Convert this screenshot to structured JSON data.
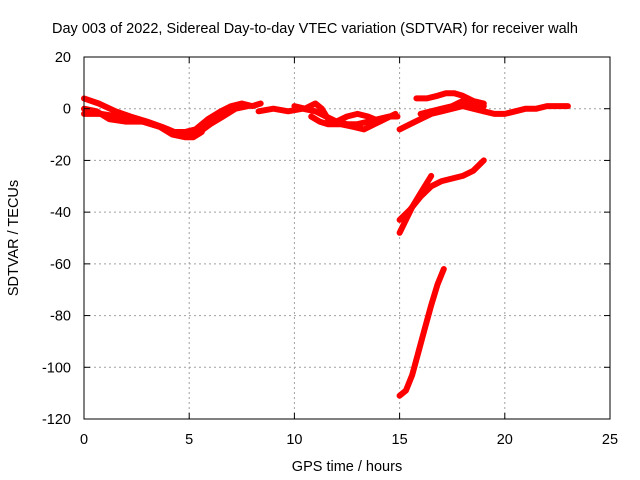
{
  "chart_data": {
    "type": "scatter",
    "title": "Day 003 of 2022, Sidereal Day-to-day VTEC variation (SDTVAR) for receiver walh",
    "xlabel": "GPS time / hours",
    "ylabel": "SDTVAR / TECUs",
    "xlim": [
      0,
      25
    ],
    "ylim": [
      -120,
      20
    ],
    "xticks": [
      0,
      5,
      10,
      15,
      20,
      25
    ],
    "yticks": [
      -120,
      -100,
      -80,
      -60,
      -40,
      -20,
      0,
      20
    ],
    "xtick_labels": [
      "0",
      "5",
      "10",
      "15",
      "20",
      "25"
    ],
    "ytick_labels": [
      "-120",
      "-100",
      "-80",
      "-60",
      "-40",
      "-20",
      "0",
      "20"
    ],
    "grid": true,
    "marker_color": "#ff0000",
    "series": [
      {
        "name": "track-1",
        "x": [
          0.0,
          0.7,
          1.5,
          2.2,
          3.0,
          3.7,
          4.3,
          4.8,
          5.3,
          5.9,
          6.5,
          7.0,
          7.5,
          8.0,
          8.4
        ],
        "y": [
          4,
          2,
          -1,
          -3,
          -5,
          -7,
          -9,
          -9,
          -8,
          -4,
          -1,
          1,
          2,
          1,
          2
        ]
      },
      {
        "name": "track-2",
        "x": [
          0.0,
          0.8,
          1.6,
          2.4,
          3.2,
          4.0,
          4.5,
          5.0,
          5.5,
          6.0,
          6.6,
          7.2,
          7.8
        ],
        "y": [
          -2,
          -2,
          -3,
          -4,
          -6,
          -8,
          -10,
          -10,
          -9,
          -6,
          -3,
          0,
          1
        ]
      },
      {
        "name": "track-3",
        "x": [
          0.0,
          0.6,
          1.2,
          2.0,
          2.8,
          3.6,
          4.2,
          4.8,
          5.2,
          5.6
        ],
        "y": [
          0,
          -1,
          -4,
          -5,
          -5,
          -7,
          -10,
          -11,
          -11,
          -9
        ]
      },
      {
        "name": "track-4",
        "x": [
          8.3,
          9.0,
          9.7,
          10.4,
          11.0,
          11.5,
          12.0,
          12.5,
          13.0,
          13.5,
          14.0,
          14.5,
          14.9
        ],
        "y": [
          -1,
          0,
          -1,
          0,
          -1,
          -3,
          -5,
          -6,
          -6,
          -5,
          -4,
          -3,
          -3
        ]
      },
      {
        "name": "track-5",
        "x": [
          10.0,
          10.5,
          11.0,
          11.3,
          11.6,
          12.0,
          12.5,
          13.0,
          13.5,
          13.8
        ],
        "y": [
          1,
          0,
          2,
          0,
          -4,
          -5,
          -3,
          -2,
          -3,
          -4
        ]
      },
      {
        "name": "track-6",
        "x": [
          10.8,
          11.2,
          11.6,
          12.2,
          12.8,
          13.3,
          13.8,
          14.3,
          14.8
        ],
        "y": [
          -3,
          -5,
          -6,
          -6,
          -7,
          -8,
          -6,
          -4,
          -2
        ]
      },
      {
        "name": "track-7",
        "x": [
          15.0,
          15.5,
          16.0,
          16.5,
          17.0,
          17.5,
          18.0,
          18.5,
          19.0,
          19.5,
          20.0,
          20.5,
          21.0,
          21.5,
          22.0,
          22.5,
          23.0
        ],
        "y": [
          -8,
          -6,
          -4,
          -2,
          -1,
          0,
          1,
          0,
          -1,
          -2,
          -2,
          -1,
          0,
          0,
          1,
          1,
          1
        ]
      },
      {
        "name": "track-8",
        "x": [
          15.8,
          16.3,
          16.8,
          17.2,
          17.6,
          18.0,
          18.5,
          19.0
        ],
        "y": [
          4,
          4,
          5,
          6,
          6,
          5,
          3,
          2
        ]
      },
      {
        "name": "track-9",
        "x": [
          16.0,
          16.5,
          17.0,
          17.5,
          18.0,
          18.5,
          19.0
        ],
        "y": [
          -2,
          -1,
          0,
          1,
          3,
          2,
          1
        ]
      },
      {
        "name": "track-10",
        "x": [
          15.0,
          15.3,
          15.6,
          15.9,
          16.2,
          16.5
        ],
        "y": [
          -48,
          -43,
          -38,
          -34,
          -30,
          -26
        ]
      },
      {
        "name": "track-11",
        "x": [
          15.0,
          15.5,
          16.0,
          16.5,
          17.0,
          17.5,
          18.0,
          18.5,
          19.0
        ],
        "y": [
          -43,
          -39,
          -34,
          -30,
          -28,
          -27,
          -26,
          -24,
          -20
        ]
      },
      {
        "name": "track-12",
        "x": [
          15.0,
          15.3,
          15.6,
          15.9,
          16.2,
          16.5,
          16.8,
          17.1
        ],
        "y": [
          -111,
          -109,
          -103,
          -94,
          -85,
          -76,
          -68,
          -62
        ]
      }
    ]
  }
}
